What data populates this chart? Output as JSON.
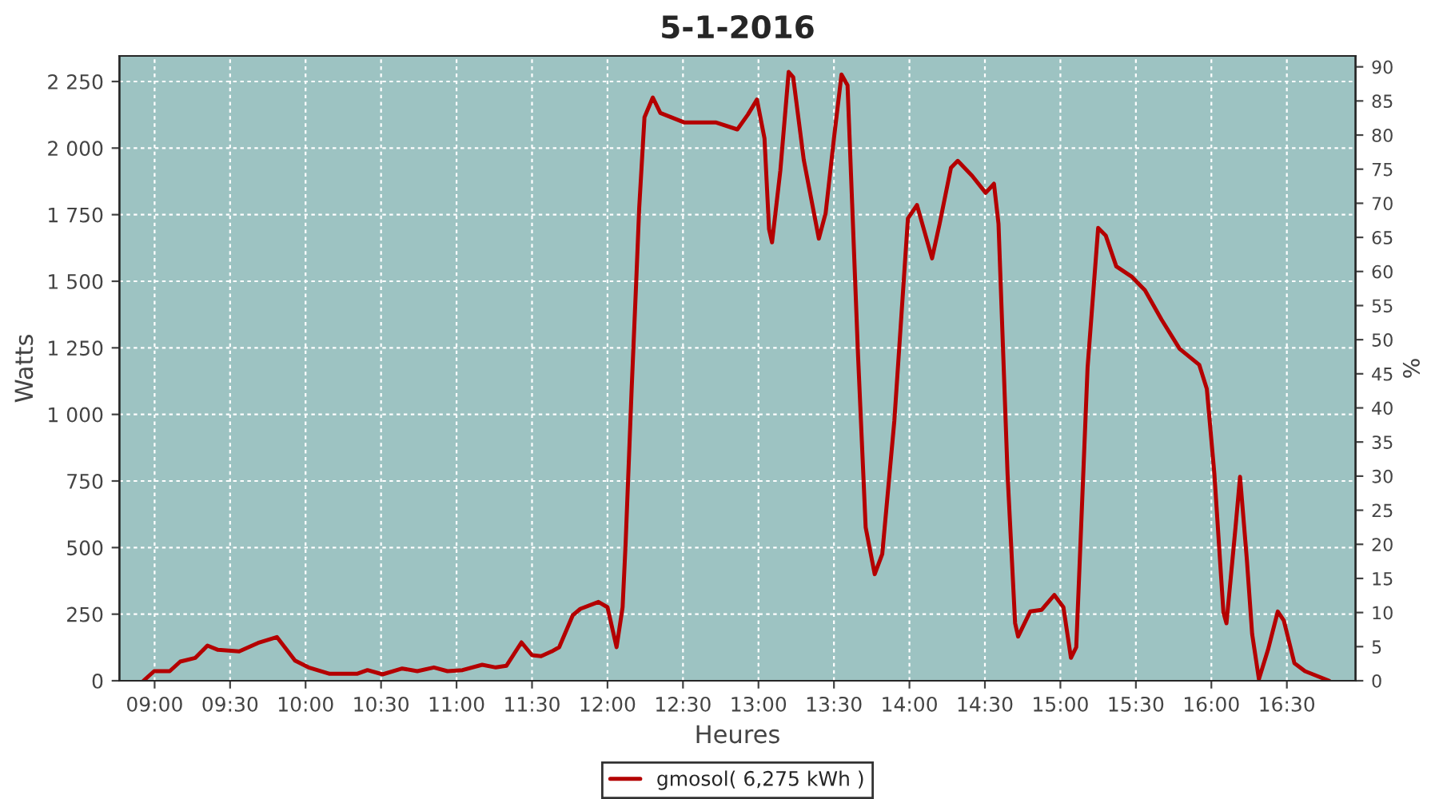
{
  "chart_data": {
    "type": "line",
    "title": "5-1-2016",
    "xlabel": "Heures",
    "ylabel": "Watts",
    "y2label": "%",
    "series": [
      {
        "name": "gmosol( 6,275 kWh )",
        "color": "#b40000",
        "x": [
          8.926,
          8.997,
          9.1,
          9.17,
          9.27,
          9.35,
          9.42,
          9.56,
          9.685,
          9.81,
          9.93,
          10.02,
          10.16,
          10.34,
          10.41,
          10.51,
          10.64,
          10.74,
          10.85,
          10.94,
          11.04,
          11.17,
          11.26,
          11.33,
          11.43,
          11.5,
          11.56,
          11.63,
          11.68,
          11.77,
          11.82,
          11.94,
          12.0,
          12.06,
          12.1,
          12.12,
          12.16,
          12.19,
          12.21,
          12.245,
          12.3,
          12.35,
          12.51,
          12.72,
          12.86,
          12.93,
          12.99,
          13.04,
          13.07,
          13.09,
          13.145,
          13.2,
          13.23,
          13.3,
          13.4,
          13.445,
          13.5,
          13.55,
          13.59,
          13.66,
          13.71,
          13.77,
          13.82,
          13.9,
          13.99,
          14.05,
          14.15,
          14.2,
          14.275,
          14.32,
          14.415,
          14.505,
          14.56,
          14.59,
          14.65,
          14.7,
          14.72,
          14.8,
          14.875,
          14.96,
          15.02,
          15.07,
          15.105,
          15.18,
          15.25,
          15.3,
          15.37,
          15.475,
          15.56,
          15.67,
          15.79,
          15.92,
          15.97,
          16.02,
          16.08,
          16.1,
          16.16,
          16.19,
          16.235,
          16.27,
          16.315,
          16.375,
          16.44,
          16.48,
          16.55,
          16.62,
          16.78
        ],
        "values": [
          0,
          36,
          36,
          72,
          86,
          132,
          116,
          110,
          142,
          164,
          76,
          50,
          26,
          26,
          40,
          24,
          46,
          36,
          50,
          36,
          40,
          60,
          50,
          56,
          144,
          96,
          92,
          110,
          126,
          246,
          270,
          296,
          276,
          126,
          276,
          516,
          1096,
          1496,
          1776,
          2116,
          2190,
          2132,
          2096,
          2096,
          2070,
          2126,
          2182,
          2036,
          1696,
          1646,
          1916,
          2286,
          2266,
          1956,
          1660,
          1756,
          2036,
          2276,
          2236,
          1216,
          576,
          400,
          476,
          976,
          1736,
          1786,
          1586,
          1716,
          1926,
          1952,
          1896,
          1832,
          1866,
          1716,
          776,
          216,
          166,
          260,
          266,
          322,
          276,
          86,
          126,
          1176,
          1700,
          1672,
          1556,
          1516,
          1466,
          1356,
          1246,
          1186,
          1096,
          776,
          256,
          216,
          576,
          766,
          456,
          176,
          6,
          116,
          260,
          226,
          66,
          36,
          0
        ]
      }
    ],
    "xlim": [
      8.767,
      16.955
    ],
    "xticks": [
      {
        "value": 9,
        "label": "09:00"
      },
      {
        "value": 9.5,
        "label": "09:30"
      },
      {
        "value": 10,
        "label": "10:00"
      },
      {
        "value": 10.5,
        "label": "10:30"
      },
      {
        "value": 11,
        "label": "11:00"
      },
      {
        "value": 11.5,
        "label": "11:30"
      },
      {
        "value": 12,
        "label": "12:00"
      },
      {
        "value": 12.5,
        "label": "12:30"
      },
      {
        "value": 13,
        "label": "13:00"
      },
      {
        "value": 13.5,
        "label": "13:30"
      },
      {
        "value": 14,
        "label": "14:00"
      },
      {
        "value": 14.5,
        "label": "14:30"
      },
      {
        "value": 15,
        "label": "15:00"
      },
      {
        "value": 15.5,
        "label": "15:30"
      },
      {
        "value": 16,
        "label": "16:00"
      },
      {
        "value": 16.5,
        "label": "16:30"
      }
    ],
    "ylim": [
      0,
      2346
    ],
    "yticks": [
      0,
      250,
      500,
      750,
      {
        "value": 1000,
        "label": "1 000"
      },
      {
        "value": 1250,
        "label": "1 250"
      },
      {
        "value": 1500,
        "label": "1 500"
      },
      {
        "value": 1750,
        "label": "1 750"
      },
      {
        "value": 2000,
        "label": "2 000"
      },
      {
        "value": 2250,
        "label": "2 250"
      }
    ],
    "y2lim": [
      0,
      91.6
    ],
    "y2ticks": [
      0,
      5,
      10,
      15,
      20,
      25,
      30,
      35,
      40,
      45,
      50,
      55,
      60,
      65,
      70,
      75,
      80,
      85,
      90
    ],
    "grid": true,
    "legend": "bottom",
    "marker": "none",
    "line_style": "solid"
  }
}
